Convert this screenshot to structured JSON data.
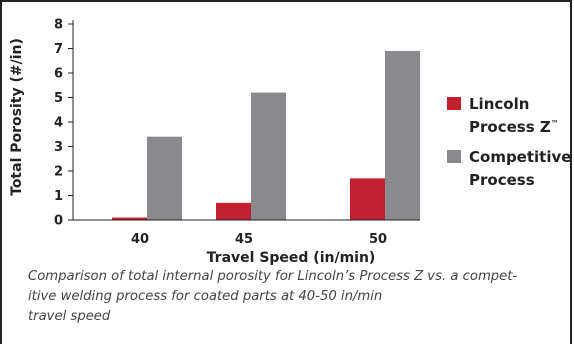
{
  "chart_data": {
    "type": "bar",
    "categories": [
      "40",
      "45",
      "50"
    ],
    "series": [
      {
        "name": "Lincoln Process Z™",
        "values": [
          0.1,
          0.7,
          1.7
        ],
        "color": "#c0202f"
      },
      {
        "name": "Competitive Process",
        "values": [
          3.4,
          5.2,
          6.9
        ],
        "color": "#8a8a8e"
      }
    ],
    "xlabel": "Travel Speed (in/min)",
    "ylabel": "Total Porosity (#/in)",
    "ylim": [
      0,
      8
    ],
    "yticks": [
      "0",
      "1",
      "2",
      "3",
      "4",
      "5",
      "6",
      "7",
      "8"
    ],
    "grid": false,
    "legend_position": "right"
  },
  "legend": {
    "lincoln_line1": "Lincoln",
    "lincoln_line2": "Process Z",
    "lincoln_tm": "™",
    "competitive_line1": "Competitive",
    "competitive_line2": "Process"
  },
  "caption": {
    "line1": "Comparison of total internal porosity for Lincoln’s Process Z vs. a compet-",
    "line2": "itive welding process for coated parts at 40-50 in/min",
    "line3": "travel speed"
  }
}
